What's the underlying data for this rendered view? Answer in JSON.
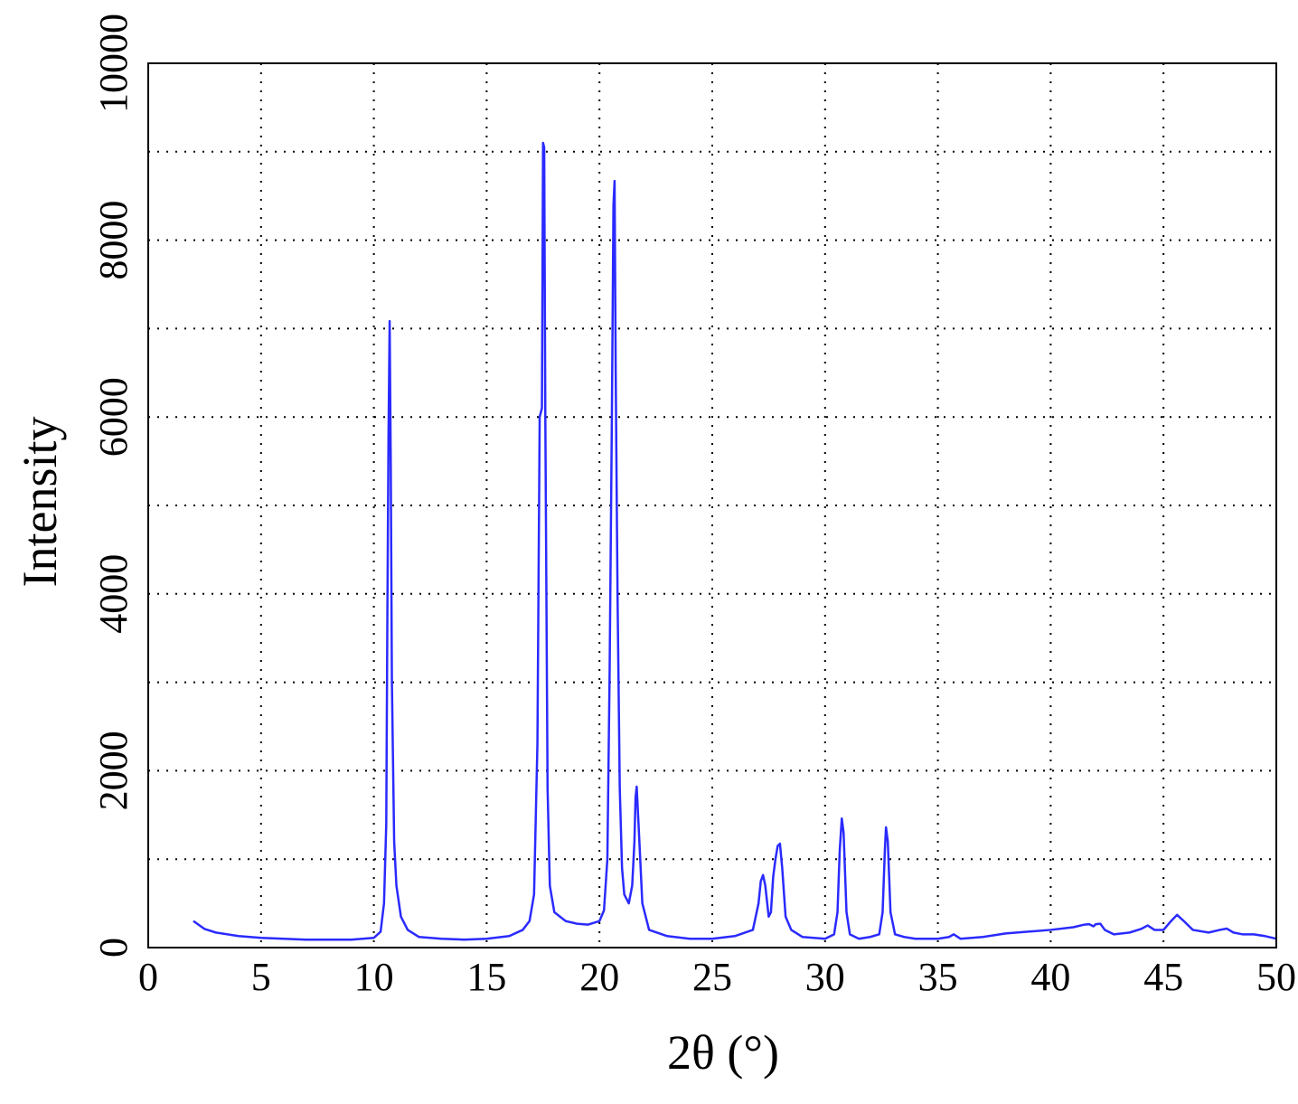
{
  "chart_data": {
    "type": "line",
    "x_label": "2θ (°)",
    "y_label": "Intensity",
    "xlim": [
      0,
      50
    ],
    "xticks": [
      0,
      5,
      10,
      15,
      20,
      25,
      30,
      35,
      40,
      45,
      50
    ],
    "ylim": [
      0,
      10000
    ],
    "yticks": [
      0,
      2000,
      4000,
      6000,
      8000,
      10000
    ],
    "ygrid": [
      1000,
      2000,
      3000,
      4000,
      5000,
      6000,
      7000,
      8000,
      9000
    ],
    "grid": true,
    "color": "#2a2aff",
    "x": [
      2,
      2.5,
      3,
      4,
      5,
      6,
      7,
      8,
      9,
      10,
      10.3,
      10.45,
      10.55,
      10.6,
      10.65,
      10.7,
      10.75,
      10.8,
      10.9,
      11.0,
      11.2,
      11.5,
      12,
      13,
      14,
      15,
      16,
      16.6,
      16.9,
      17.1,
      17.25,
      17.35,
      17.45,
      17.5,
      17.55,
      17.6,
      17.7,
      17.8,
      18.0,
      18.5,
      19,
      19.5,
      20,
      20.2,
      20.35,
      20.45,
      20.55,
      20.62,
      20.67,
      20.72,
      20.8,
      20.9,
      21.0,
      21.1,
      21.3,
      21.45,
      21.55,
      21.6,
      21.65,
      21.75,
      21.9,
      22.2,
      23,
      24,
      25,
      26,
      26.8,
      27.05,
      27.15,
      27.25,
      27.35,
      27.5,
      27.6,
      27.7,
      27.8,
      27.9,
      28.0,
      28.1,
      28.25,
      28.5,
      29,
      30,
      30.4,
      30.55,
      30.65,
      30.74,
      30.82,
      30.95,
      31.1,
      31.5,
      32,
      32.4,
      32.55,
      32.65,
      32.7,
      32.78,
      32.9,
      33.1,
      33.5,
      34,
      35,
      35.5,
      35.7,
      36,
      37,
      38,
      39,
      40,
      41,
      41.5,
      41.7,
      41.9,
      42.0,
      42.2,
      42.4,
      42.8,
      43.5,
      44,
      44.3,
      44.6,
      45,
      45.3,
      45.6,
      45.9,
      46.3,
      47,
      47.5,
      47.8,
      48.1,
      48.5,
      49,
      49.5,
      50
    ],
    "values": [
      300,
      210,
      170,
      130,
      110,
      100,
      90,
      90,
      90,
      110,
      180,
      500,
      1400,
      3800,
      5800,
      7085,
      5450,
      3000,
      1200,
      700,
      350,
      200,
      120,
      100,
      90,
      100,
      130,
      200,
      300,
      600,
      2300,
      6000,
      6100,
      9100,
      9050,
      6000,
      1800,
      700,
      400,
      300,
      270,
      260,
      300,
      420,
      1000,
      3100,
      6000,
      8400,
      8670,
      6500,
      4000,
      1800,
      900,
      600,
      500,
      700,
      1200,
      1700,
      1820,
      1300,
      500,
      200,
      130,
      100,
      100,
      130,
      200,
      500,
      750,
      820,
      700,
      350,
      400,
      800,
      1000,
      1150,
      1175,
      900,
      350,
      200,
      120,
      100,
      150,
      400,
      1100,
      1460,
      1300,
      400,
      150,
      100,
      120,
      150,
      400,
      1100,
      1360,
      1200,
      400,
      150,
      120,
      100,
      100,
      120,
      150,
      100,
      120,
      160,
      180,
      200,
      230,
      260,
      265,
      240,
      265,
      270,
      200,
      150,
      170,
      210,
      250,
      200,
      200,
      290,
      370,
      300,
      200,
      170,
      200,
      215,
      170,
      150,
      150,
      130,
      100
    ]
  }
}
